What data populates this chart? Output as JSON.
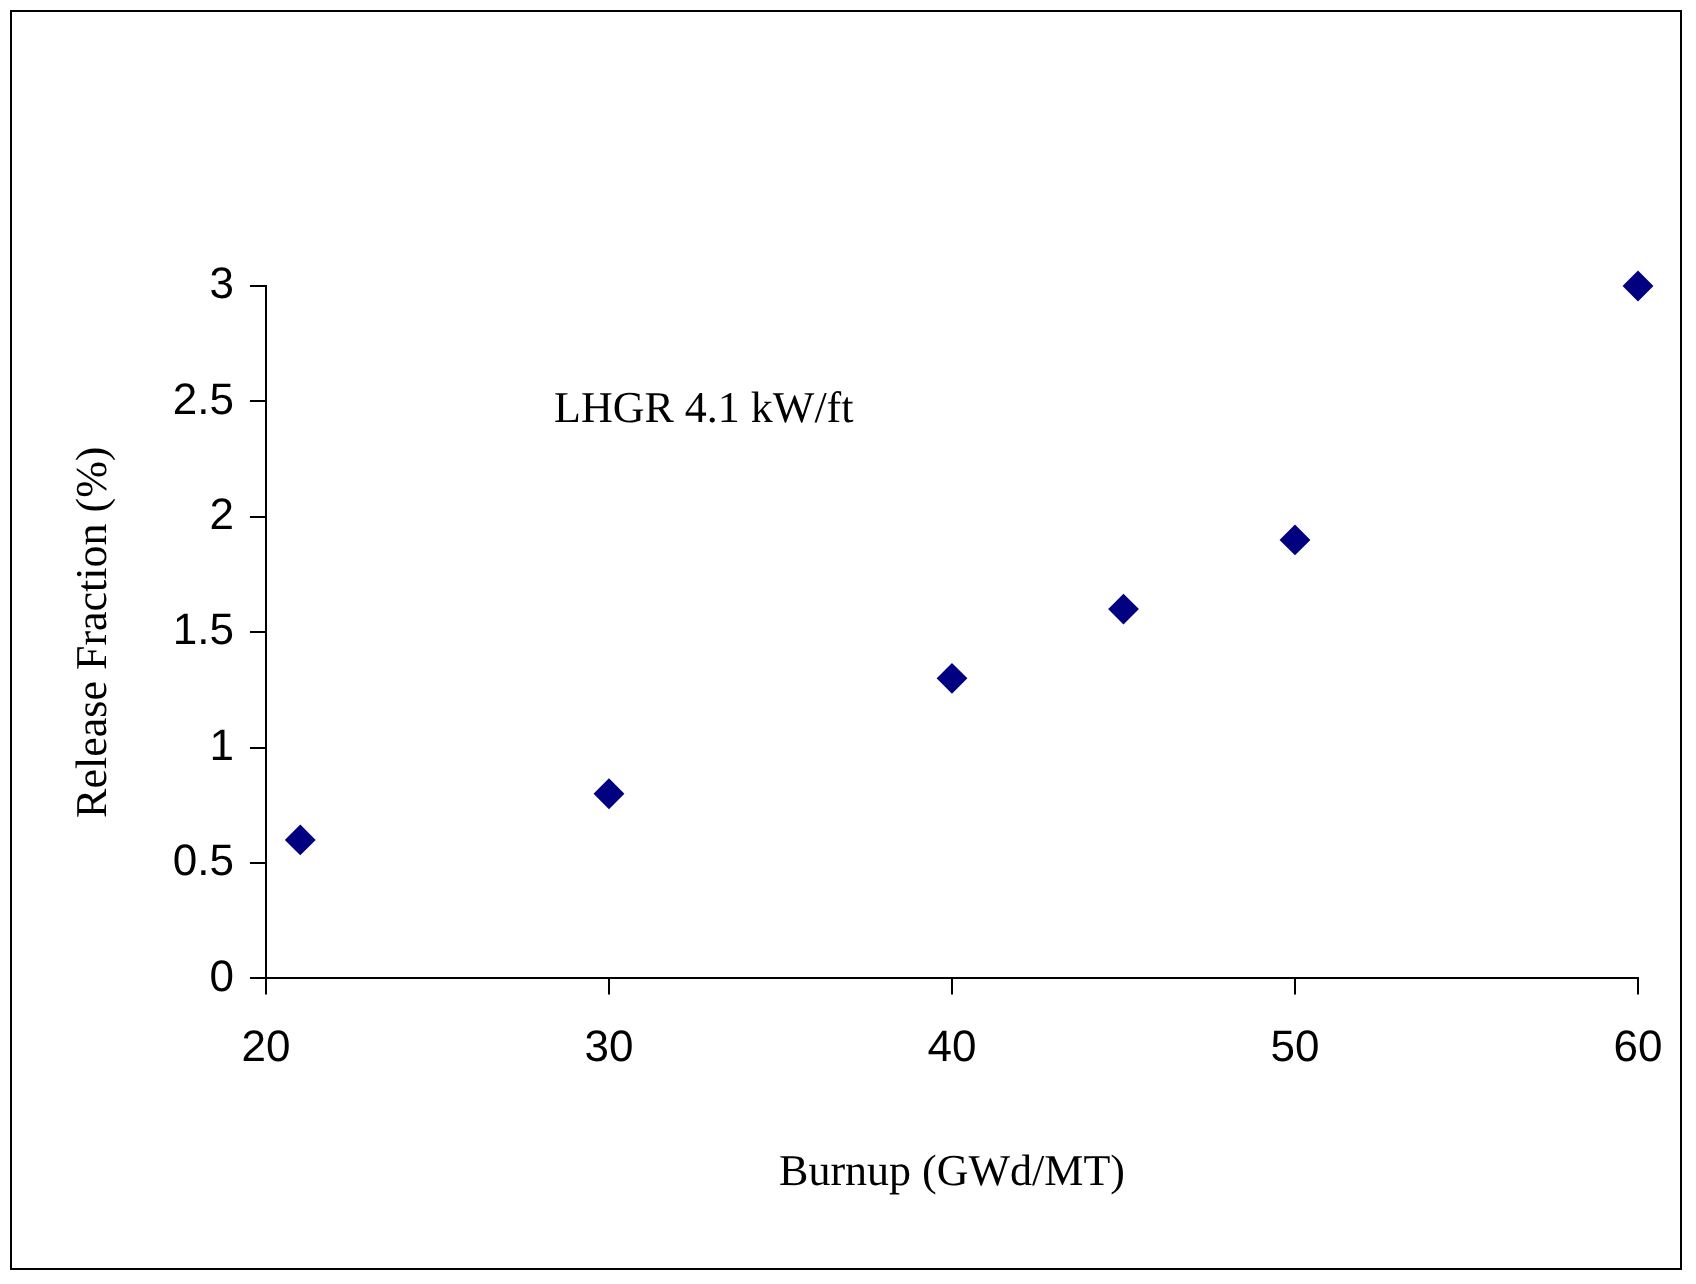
{
  "chart_data": {
    "type": "scatter",
    "xlabel": "Burnup (GWd/MT)",
    "ylabel": "Release Fraction (%)",
    "annotations": [
      "LHGR 4.1 kW/ft"
    ],
    "x": [
      21,
      30,
      40,
      45,
      50,
      60
    ],
    "series": [
      {
        "color": "#000080",
        "values": [
          0.6,
          0.8,
          1.3,
          1.6,
          1.9,
          3
        ]
      }
    ],
    "xlim": [
      20,
      60
    ],
    "xticks": [
      20,
      30,
      40,
      50,
      60
    ],
    "ylim": [
      0,
      3
    ],
    "yticks": [
      0,
      0.5,
      1,
      1.5,
      2,
      2.5,
      3
    ],
    "grid": false,
    "legend": false,
    "marker": "diamond"
  }
}
